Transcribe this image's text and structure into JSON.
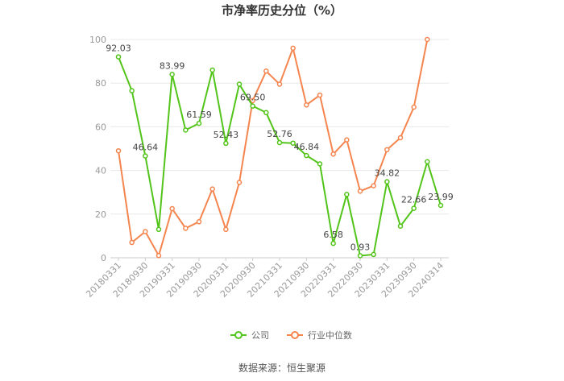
{
  "chart_data": {
    "type": "line",
    "title": "市净率历史分位（%）",
    "x": [
      "20180331",
      "20180630",
      "20180930",
      "20181231",
      "20190331",
      "20190630",
      "20190930",
      "20191231",
      "20200331",
      "20200630",
      "20200930",
      "20201231",
      "20210331",
      "20210630",
      "20210930",
      "20211231",
      "20220331",
      "20220630",
      "20220930",
      "20221231",
      "20230331",
      "20230630",
      "20230930",
      "20231231",
      "20240314"
    ],
    "x_tick_labels": [
      "20180331",
      "20180930",
      "20190331",
      "20190930",
      "20200331",
      "20200930",
      "20210331",
      "20210930",
      "20220331",
      "20220930",
      "20230331",
      "20230930",
      "20240314"
    ],
    "ylim": [
      0,
      100
    ],
    "y_ticks": [
      0,
      20,
      40,
      60,
      80,
      100
    ],
    "grid": true,
    "legend": "bottom",
    "series": [
      {
        "name": "公司",
        "color": "#52c41a",
        "values": [
          92.03,
          76.5,
          46.64,
          13.0,
          83.99,
          58.5,
          61.59,
          86.0,
          52.43,
          79.5,
          69.5,
          66.5,
          52.76,
          52.5,
          46.84,
          43.0,
          6.58,
          29.0,
          0.93,
          1.5,
          34.82,
          14.5,
          22.66,
          44.0,
          23.99
        ],
        "labels": [
          "92.03",
          "",
          "46.64",
          "",
          "83.99",
          "",
          "61.59",
          "",
          "52.43",
          "",
          "69.50",
          "",
          "52.76",
          "",
          "46.84",
          "",
          "6.58",
          "",
          "0.93",
          "",
          "34.82",
          "",
          "22.66",
          "",
          "23.99"
        ]
      },
      {
        "name": "行业中位数",
        "color": "#f5854f",
        "values": [
          49.0,
          7.0,
          12.0,
          1.0,
          22.5,
          13.5,
          16.5,
          31.5,
          13.0,
          34.5,
          72.0,
          85.5,
          79.5,
          96.0,
          70.0,
          74.5,
          47.5,
          54.0,
          30.5,
          33.0,
          49.5,
          55.0,
          69.0,
          100.0,
          null
        ]
      }
    ]
  },
  "source": "数据来源：恒生聚源"
}
